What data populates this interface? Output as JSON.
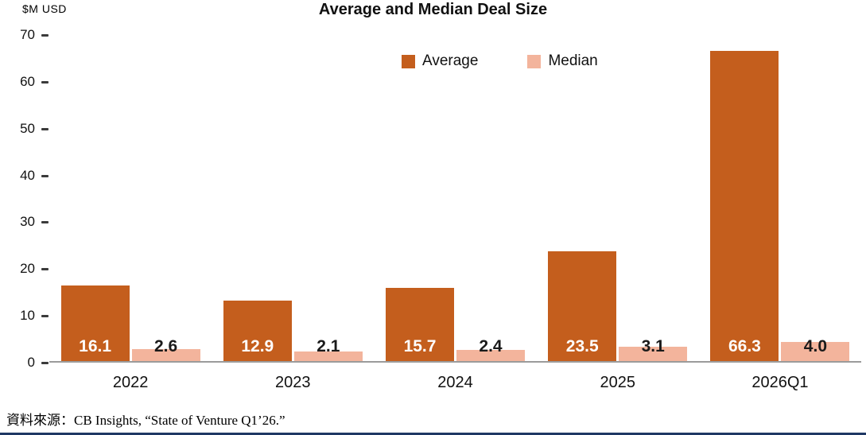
{
  "chart": {
    "y_axis_unit": "$M USD",
    "source": "資料來源：CB Insights, “State of Venture Q1’26.”",
    "colors": {
      "average": "#C45E1D",
      "median": "#F3B49C",
      "bottom_rule": "#1F3864"
    }
  },
  "chart_data": {
    "type": "bar",
    "title": "Average and Median Deal Size",
    "categories": [
      "2022",
      "2023",
      "2024",
      "2025",
      "2026Q1"
    ],
    "series": [
      {
        "name": "Average",
        "values": [
          16.1,
          12.9,
          15.7,
          23.5,
          66.3
        ]
      },
      {
        "name": "Median",
        "values": [
          2.6,
          2.1,
          2.4,
          3.1,
          4.0
        ]
      }
    ],
    "xlabel": "",
    "ylabel": "$M USD",
    "ylim": [
      0,
      70
    ],
    "yticks": [
      0,
      10,
      20,
      30,
      40,
      50,
      60,
      70
    ],
    "grid": false,
    "legend_position": "top-center",
    "value_labels": true
  }
}
